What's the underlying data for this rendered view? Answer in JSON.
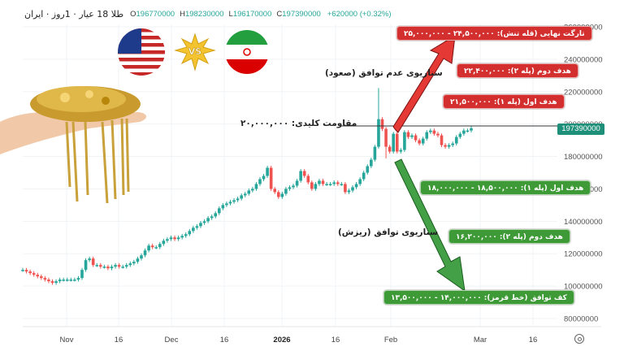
{
  "header": {
    "title": "طلا 18 عیار · 1روز · ایران",
    "open_label": "O",
    "open": "196770000",
    "high_label": "H",
    "high": "198230000",
    "low_label": "L",
    "low": "196170000",
    "close_label": "C",
    "close": "197390000",
    "change": "+620000 (+0.32%)"
  },
  "colors": {
    "up": "#26a69a",
    "down": "#ef5350",
    "red_box": "#d32f2f",
    "green_box": "#3d9a36",
    "price_tag": "#1e8f78"
  },
  "price_tag": "197390000",
  "resistance_label": "مقاومت کلیدی: ۲۰,۰۰۰,۰۰۰",
  "scenario_up_label": "سناریوی عدم توافق (صعود)",
  "scenario_down_label": "سناریوی توافق (ریزش)",
  "red_targets": [
    {
      "label": "تارگت نهایی (قله تنش): ۲۴,۵۰۰,۰۰۰ - ۲۵,۰۰۰,۰۰۰"
    },
    {
      "label": "هدف دوم (پله ۲): ۲۲,۴۰۰,۰۰۰"
    },
    {
      "label": "هدف اول (پله ۱): ۲۱,۵۰۰,۰۰۰"
    }
  ],
  "green_targets": [
    {
      "label": "هدف اول (پله ۱): ۱۸,۵۰۰,۰۰۰ - ۱۸,۰۰۰,۰۰۰"
    },
    {
      "label": "هدف دوم (پله ۲): ۱۶,۲۰۰,۰۰۰"
    },
    {
      "label": "کف توافق (خط قرمز): ۱۴,۰۰۰,۰۰۰ - ۱۳,۵۰۰,۰۰۰"
    }
  ],
  "images": {
    "left": "gold-jewelry-in-hand",
    "flag_1": "usa-flag",
    "vs": "vs-burst",
    "flag_2": "iran-flag"
  },
  "chart_data": {
    "type": "candlestick",
    "title": "طلا 18 عیار · 1روز · ایران",
    "ylabel": "",
    "xlabel": "",
    "ylim": [
      80000000,
      260000000
    ],
    "y_ticks": [
      "260000000",
      "240000000",
      "220000000",
      "200000000",
      "180000000",
      "160000000",
      "140000000",
      "120000000",
      "100000000",
      "80000000"
    ],
    "x_ticks": [
      "Nov",
      "16",
      "Dec",
      "16",
      "2026",
      "16",
      "Feb",
      "Mar",
      "16"
    ],
    "resistance_line": 200000000,
    "last_price": 197390000,
    "approx_close_series_millions": [
      110,
      109,
      108,
      107,
      106,
      105,
      104,
      103,
      102,
      103,
      104,
      104,
      104,
      104,
      104,
      105,
      110,
      116,
      117,
      113,
      113,
      112,
      112,
      111,
      112,
      113,
      112,
      112,
      113,
      114,
      115,
      117,
      119,
      122,
      125,
      124,
      124,
      126,
      128,
      129,
      130,
      129,
      130,
      131,
      132,
      134,
      136,
      137,
      139,
      140,
      142,
      143,
      145,
      148,
      150,
      151,
      152,
      153,
      154,
      156,
      157,
      159,
      160,
      163,
      166,
      168,
      173,
      160,
      158,
      155,
      157,
      160,
      161,
      162,
      165,
      171,
      168,
      164,
      160,
      163,
      165,
      163,
      163,
      163,
      164,
      163,
      163,
      158,
      159,
      161,
      163,
      166,
      170,
      174,
      178,
      186,
      203,
      197,
      186,
      183,
      194,
      183,
      184,
      195,
      192,
      193,
      190,
      188,
      191,
      195,
      196,
      194,
      193,
      187,
      186,
      187,
      188,
      192,
      194,
      196,
      196,
      197.4
    ]
  }
}
